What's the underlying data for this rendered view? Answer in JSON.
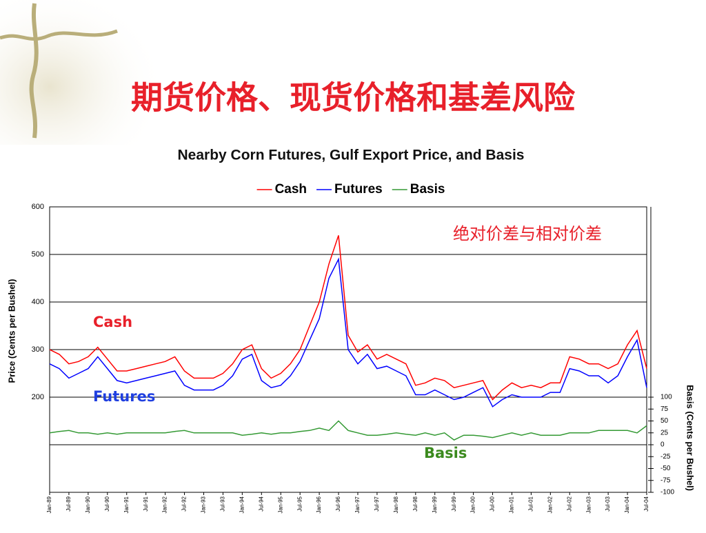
{
  "slide_title": "期货价格、现货价格和基差风险",
  "chart_data": {
    "type": "line",
    "title": "Nearby Corn Futures, Gulf Export Price, and Basis",
    "y_label": "Price (Cents per Bushel)",
    "y2_label": "Basis (Cents per Bushel)",
    "annotations": [
      {
        "text": "Cash",
        "color": "#e8202a"
      },
      {
        "text": "Futures",
        "color": "#1f3fe0"
      },
      {
        "text": "Basis",
        "color": "#3b8a1e"
      },
      {
        "text": "绝对价差与相对价差",
        "color": "#e8202a"
      }
    ],
    "categories": [
      "Jan-89",
      null,
      "Jul-89",
      null,
      "Jan-90",
      null,
      "Jul-90",
      null,
      "Jan-91",
      null,
      "Jul-91",
      null,
      "Jan-92",
      null,
      "Jul-92",
      null,
      "Jan-93",
      null,
      "Jul-93",
      null,
      "Jan-94",
      null,
      "Jul-94",
      null,
      "Jan-95",
      null,
      "Jul-95",
      null,
      "Jan-96",
      null,
      "Jul-96",
      null,
      "Jan-97",
      null,
      "Jul-97",
      null,
      "Jan-98",
      null,
      "Jul-98",
      null,
      "Jan-99",
      null,
      "Jul-99",
      null,
      "Jan-00",
      null,
      "Jul-00",
      null,
      "Jan-01",
      null,
      "Jul-01",
      null,
      "Jan-02",
      null,
      "Jul-02",
      null,
      "Jan-03",
      null,
      "Jul-03",
      null,
      "Jan-04",
      null,
      "Jul-04"
    ],
    "series": [
      {
        "name": "Cash",
        "color": "#ff0000",
        "values": [
          300,
          290,
          270,
          275,
          285,
          305,
          280,
          255,
          255,
          260,
          265,
          270,
          275,
          285,
          255,
          240,
          240,
          240,
          250,
          270,
          300,
          310,
          260,
          240,
          250,
          270,
          300,
          350,
          400,
          480,
          540,
          330,
          295,
          310,
          280,
          290,
          280,
          270,
          225,
          230,
          240,
          235,
          220,
          225,
          230,
          235,
          195,
          215,
          230,
          220,
          225,
          220,
          230,
          230,
          285,
          280,
          270,
          270,
          260,
          270,
          310,
          340,
          260
        ]
      },
      {
        "name": "Futures",
        "color": "#0000ff",
        "values": [
          270,
          260,
          240,
          250,
          260,
          285,
          260,
          235,
          230,
          235,
          240,
          245,
          250,
          255,
          225,
          215,
          215,
          215,
          225,
          245,
          280,
          290,
          235,
          220,
          225,
          245,
          275,
          320,
          365,
          450,
          490,
          300,
          270,
          290,
          260,
          265,
          255,
          245,
          205,
          205,
          215,
          205,
          195,
          200,
          210,
          220,
          180,
          195,
          205,
          200,
          200,
          200,
          210,
          210,
          260,
          255,
          245,
          245,
          230,
          245,
          285,
          320,
          220
        ]
      },
      {
        "name": "Basis",
        "color": "#339933",
        "axis": "y2",
        "values": [
          25,
          28,
          30,
          25,
          25,
          22,
          25,
          22,
          25,
          25,
          25,
          25,
          25,
          28,
          30,
          25,
          25,
          25,
          25,
          25,
          20,
          22,
          25,
          22,
          25,
          25,
          28,
          30,
          35,
          30,
          50,
          30,
          25,
          20,
          20,
          22,
          25,
          22,
          20,
          25,
          20,
          25,
          10,
          20,
          20,
          18,
          15,
          20,
          25,
          20,
          25,
          20,
          20,
          20,
          25,
          25,
          25,
          30,
          30,
          30,
          30,
          25,
          40
        ]
      }
    ],
    "ylim": [
      0,
      600
    ],
    "yticks": [
      200,
      300,
      400,
      500,
      600
    ],
    "y2lim": [
      -100,
      500
    ],
    "y2ticks": [
      -100,
      -75,
      -50,
      -25,
      0,
      25,
      50,
      75,
      100
    ],
    "grid": true
  }
}
